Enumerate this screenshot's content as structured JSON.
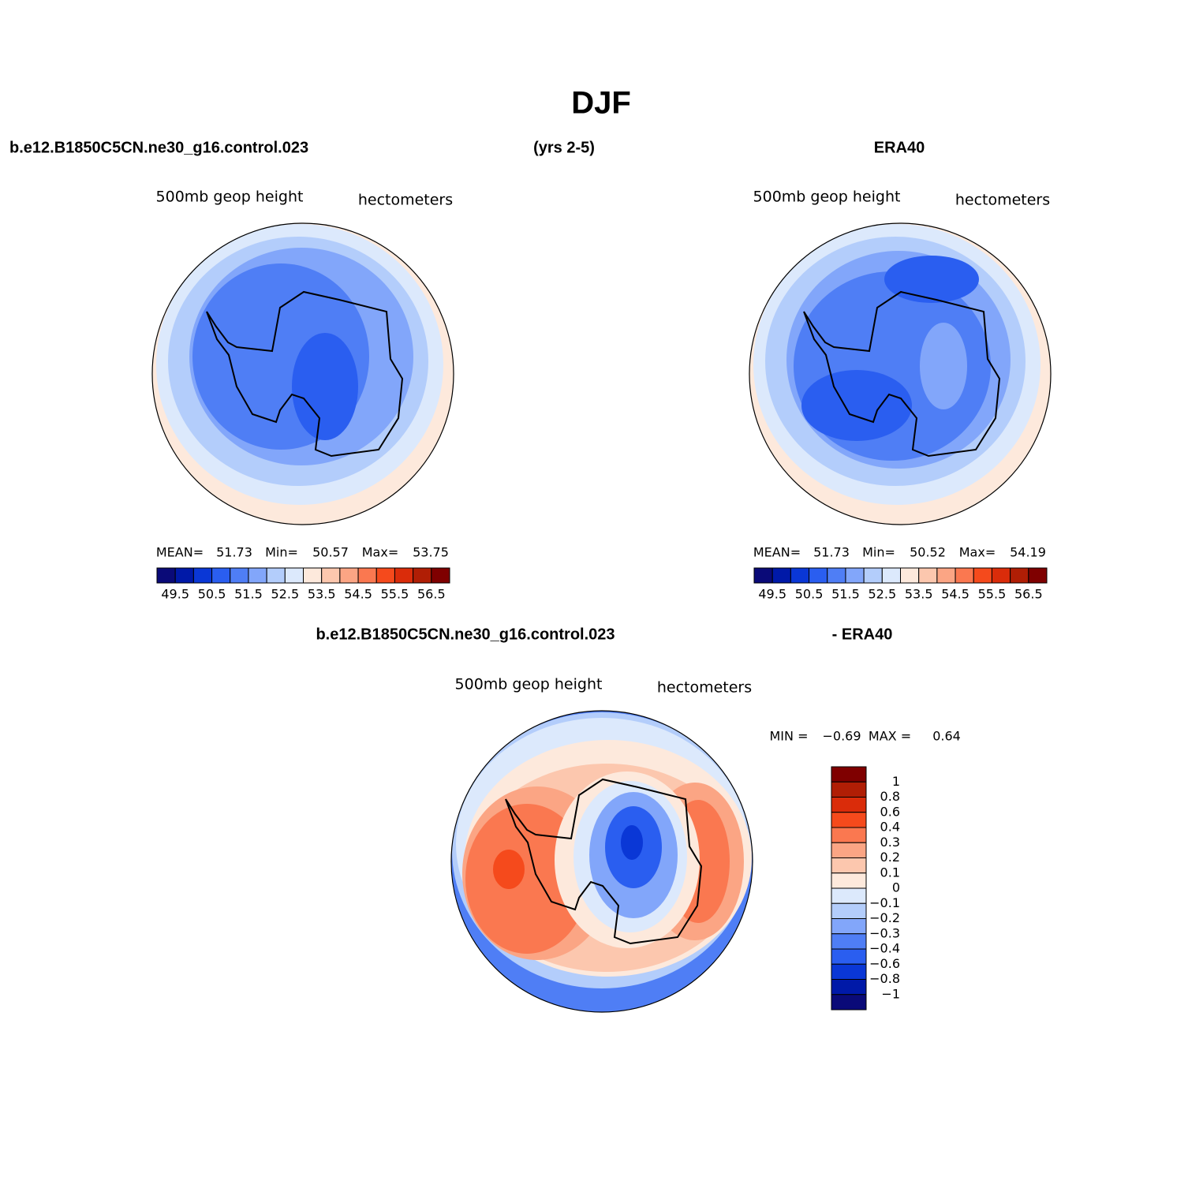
{
  "title": "DJF",
  "headers": {
    "top": [
      "b.e12.B1850C5CN.ne30_g16.control.023",
      "(yrs 2-5)",
      "ERA40"
    ],
    "bottom": [
      "b.e12.B1850C5CN.ne30_g16.control.023",
      "- ERA40"
    ]
  },
  "panels": [
    {
      "label_left": "500mb  geop  height",
      "label_right": "hectometers",
      "stats": [
        "MEAN=",
        "51.73",
        "Min=",
        "50.57",
        "Max=",
        "53.75"
      ],
      "colorbar": {
        "colors": [
          "#0a0a78",
          "#0019a8",
          "#0a37d6",
          "#2a5ef0",
          "#4f7ef5",
          "#82a6fa",
          "#b3cdfb",
          "#dce9fc",
          "#fde9dc",
          "#fcc7ae",
          "#fba584",
          "#fa7850",
          "#f54a1c",
          "#da2c0a",
          "#b01e05",
          "#7f0000"
        ],
        "labels": [
          "49.5",
          "50.5",
          "51.5",
          "52.5",
          "53.5",
          "54.5",
          "55.5",
          "56.5"
        ]
      }
    },
    {
      "label_left": "500mb  geop  height",
      "label_right": "hectometers",
      "stats": [
        "MEAN=",
        "51.73",
        "Min=",
        "50.52",
        "Max=",
        "54.19"
      ],
      "colorbar": {
        "colors": [
          "#0a0a78",
          "#0019a8",
          "#0a37d6",
          "#2a5ef0",
          "#4f7ef5",
          "#82a6fa",
          "#b3cdfb",
          "#dce9fc",
          "#fde9dc",
          "#fcc7ae",
          "#fba584",
          "#fa7850",
          "#f54a1c",
          "#da2c0a",
          "#b01e05",
          "#7f0000"
        ],
        "labels": [
          "49.5",
          "50.5",
          "51.5",
          "52.5",
          "53.5",
          "54.5",
          "55.5",
          "56.5"
        ]
      }
    },
    {
      "label_left": "500mb  geop  height",
      "label_right": "hectometers",
      "stats": [
        "MIN =",
        "−0.69",
        "MAX =",
        "0.64"
      ],
      "colorbar": {
        "colors": [
          "#7f0000",
          "#b01e05",
          "#da2c0a",
          "#f54a1c",
          "#fa7850",
          "#fba584",
          "#fcc7ae",
          "#fde9dc",
          "#dce9fc",
          "#b3cdfb",
          "#82a6fa",
          "#4f7ef5",
          "#2a5ef0",
          "#0a37d6",
          "#0019a8",
          "#0a0a78"
        ],
        "labels": [
          "1",
          "0.8",
          "0.6",
          "0.4",
          "0.3",
          "0.2",
          "0.1",
          "0",
          "−0.1",
          "−0.2",
          "−0.3",
          "−0.4",
          "−0.6",
          "−0.8",
          "−1"
        ]
      }
    }
  ]
}
